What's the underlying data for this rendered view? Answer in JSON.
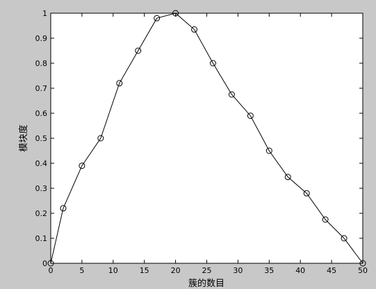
{
  "colors": {
    "figure_background": "#c8c8c8",
    "plot_background": "#ffffff",
    "axis": "#000000",
    "line": "#000000",
    "marker": "#000000"
  },
  "chart_data": {
    "type": "line",
    "title": "",
    "xlabel": "簇的数目",
    "ylabel": "模块度",
    "xlim": [
      0,
      50
    ],
    "ylim": [
      0,
      1
    ],
    "x_ticks": [
      0,
      5,
      10,
      15,
      20,
      25,
      30,
      35,
      40,
      45,
      50
    ],
    "y_ticks": [
      0,
      0.1,
      0.2,
      0.3,
      0.4,
      0.5,
      0.6,
      0.7,
      0.8,
      0.9,
      1
    ],
    "grid": false,
    "legend": "none",
    "marker": "open-circle",
    "series": [
      {
        "x": [
          0,
          2,
          5,
          8,
          11,
          14,
          17,
          20,
          23,
          26,
          29,
          32,
          35,
          38,
          41,
          44,
          47,
          50
        ],
        "values": [
          0,
          0.22,
          0.39,
          0.5,
          0.72,
          0.85,
          0.98,
          1.0,
          0.935,
          0.8,
          0.675,
          0.59,
          0.45,
          0.345,
          0.28,
          0.175,
          0.1,
          0
        ]
      }
    ]
  }
}
